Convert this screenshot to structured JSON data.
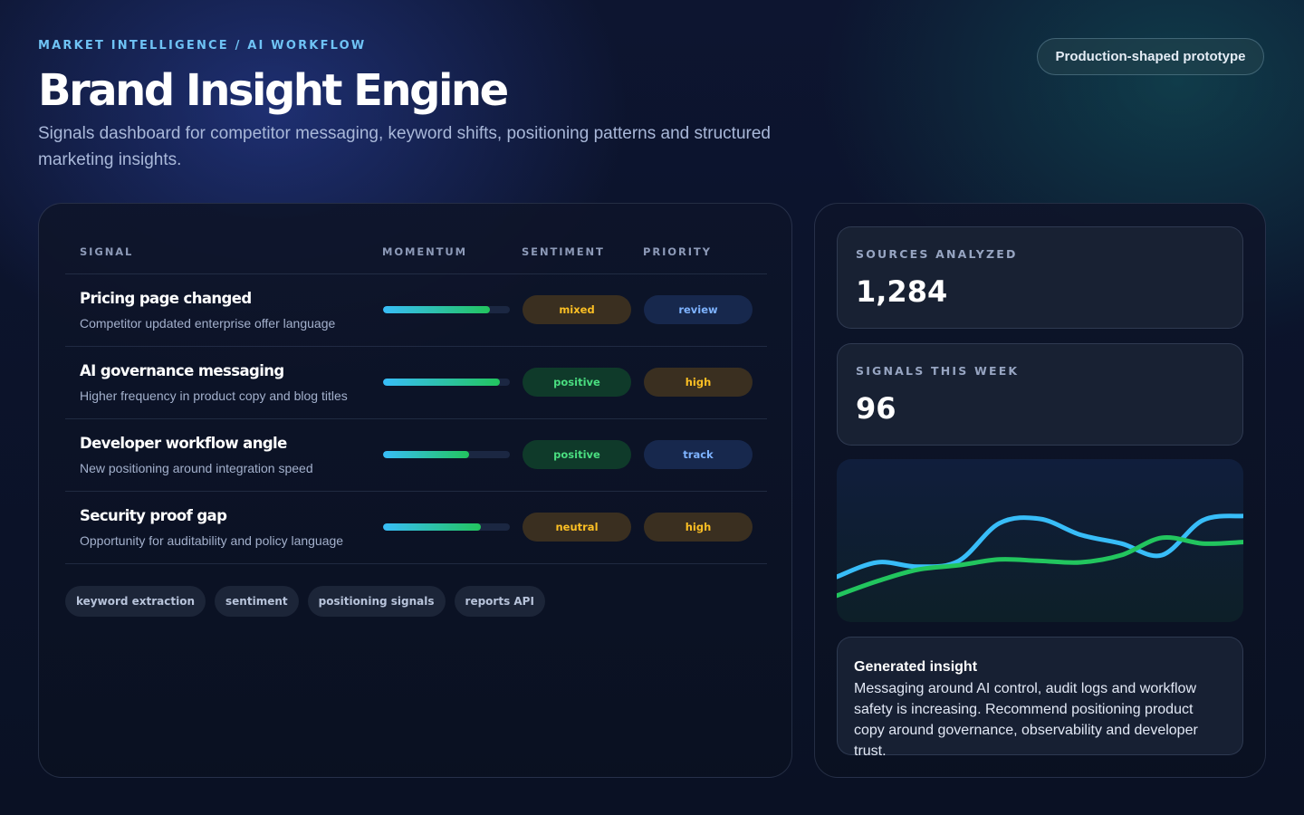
{
  "header": {
    "eyebrow": "MARKET INTELLIGENCE / AI WORKFLOW",
    "title": "Brand Insight Engine",
    "subtitle": "Signals dashboard for competitor messaging, keyword shifts, positioning patterns and structured marketing insights.",
    "badge": "Production-shaped prototype"
  },
  "table": {
    "columns": [
      "SIGNAL",
      "MOMENTUM",
      "SENTIMENT",
      "PRIORITY"
    ],
    "rows": [
      {
        "title": "Pricing page changed",
        "description": "Competitor updated enterprise offer language",
        "momentum": 0.84,
        "sentiment": "mixed",
        "sentiment_color": "#fbbf24",
        "priority": "review",
        "priority_color": "#7eb3ff"
      },
      {
        "title": "AI governance messaging",
        "description": "Higher frequency in product copy and blog titles",
        "momentum": 0.92,
        "sentiment": "positive",
        "sentiment_color": "#4ade80",
        "priority": "high",
        "priority_color": "#fbbf24"
      },
      {
        "title": "Developer workflow angle",
        "description": "New positioning around integration speed",
        "momentum": 0.68,
        "sentiment": "positive",
        "sentiment_color": "#4ade80",
        "priority": "track",
        "priority_color": "#7eb3ff"
      },
      {
        "title": "Security proof gap",
        "description": "Opportunity for auditability and policy language",
        "momentum": 0.77,
        "sentiment": "neutral",
        "sentiment_color": "#fbbf24",
        "priority": "high",
        "priority_color": "#fbbf24"
      }
    ]
  },
  "tags": [
    "keyword extraction",
    "sentiment",
    "positioning signals",
    "reports API"
  ],
  "stats": [
    {
      "label": "SOURCES ANALYZED",
      "value": "1,284"
    },
    {
      "label": "SIGNALS THIS WEEK",
      "value": "96"
    }
  ],
  "chart_data": {
    "type": "line",
    "title": "",
    "xlabel": "",
    "ylabel": "",
    "grid": false,
    "legend": "none",
    "x": [
      0,
      1,
      2,
      3,
      4,
      5,
      6,
      7,
      8,
      9,
      10
    ],
    "series": [
      {
        "color": "#38bdf8",
        "values": [
          25,
          35,
          32,
          36,
          62,
          65,
          54,
          48,
          40,
          64,
          67
        ]
      },
      {
        "color": "#22c55e",
        "values": [
          12,
          22,
          30,
          33,
          37,
          36,
          35,
          40,
          52,
          48,
          49
        ]
      }
    ],
    "ylim": [
      0,
      100
    ]
  },
  "insight": {
    "title": "Generated insight",
    "body": "Messaging around AI control, audit logs and workflow safety is increasing. Recommend positioning product copy around governance, observability and developer trust."
  },
  "colors": {
    "accent": "#38bdf8",
    "accent_green": "#22c55e",
    "amber": "#fbbf24"
  }
}
